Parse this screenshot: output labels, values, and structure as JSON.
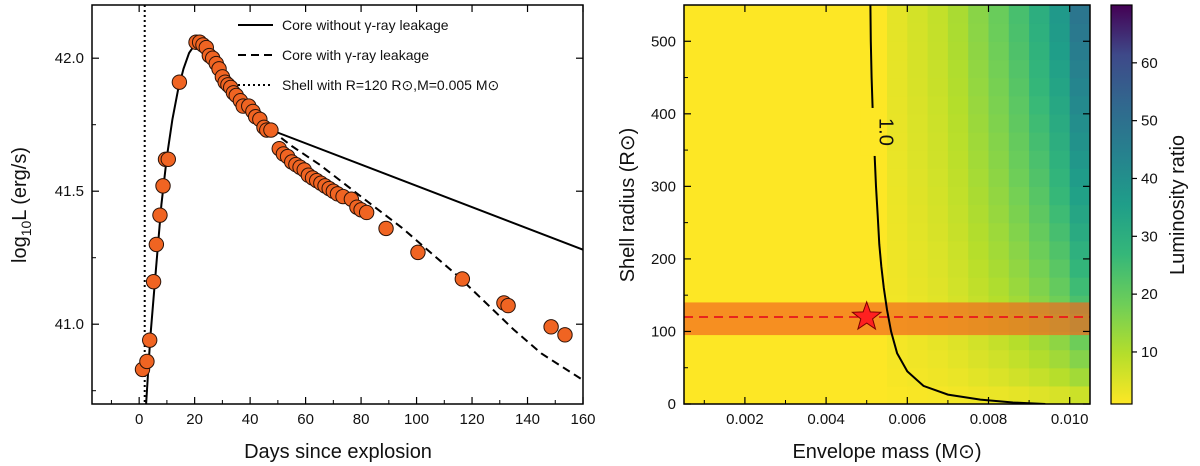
{
  "chart_data": [
    {
      "type": "scatter+line",
      "title": "",
      "xlabel": "Days since explosion",
      "ylabel_main": "log",
      "ylabel_sub": "10",
      "ylabel_rest": "L (erg/s)",
      "xlim": [
        -17,
        160
      ],
      "ylim": [
        40.7,
        42.2
      ],
      "xticks": [
        0,
        20,
        40,
        60,
        80,
        100,
        120,
        140,
        160
      ],
      "yticks": [
        41.0,
        41.5,
        42.0
      ],
      "ytick_labels": [
        "41.0",
        "41.5",
        "42.0"
      ],
      "marker_color": "#f06422",
      "legend": [
        {
          "label": "Core without γ-ray leakage",
          "style": "solid"
        },
        {
          "label": "Core with γ-ray leakage",
          "style": "dashed"
        },
        {
          "label": "Shell with R=120 R⊙,M=0.005 M⊙",
          "style": "dotted"
        }
      ],
      "observations": {
        "x": [
          1.2,
          2.8,
          3.8,
          5.2,
          6.2,
          7.5,
          8.6,
          9.5,
          10.5,
          14.5,
          20.5,
          21.8,
          23.0,
          24.2,
          25.3,
          26.5,
          27.8,
          28.8,
          30.0,
          31.0,
          32.0,
          33.0,
          34.0,
          35.0,
          36.5,
          37.5,
          39.5,
          41.0,
          42.0,
          43.5,
          45.0,
          46.0,
          47.5,
          50.5,
          52.0,
          53.5,
          55.0,
          56.5,
          58.0,
          59.5,
          61.0,
          62.5,
          64.0,
          65.5,
          67.0,
          68.5,
          70.0,
          71.5,
          73.5,
          76.5,
          78.5,
          80.0,
          82.0,
          89.0,
          100.5,
          116.5,
          131.5,
          133.0,
          148.5,
          153.5
        ],
        "y": [
          40.83,
          40.86,
          40.94,
          41.16,
          41.3,
          41.41,
          41.52,
          41.62,
          41.62,
          41.91,
          42.06,
          42.06,
          42.05,
          42.04,
          42.01,
          42.0,
          41.98,
          41.96,
          41.93,
          41.91,
          41.9,
          41.89,
          41.87,
          41.86,
          41.84,
          41.82,
          41.82,
          41.8,
          41.78,
          41.77,
          41.74,
          41.73,
          41.73,
          41.66,
          41.64,
          41.63,
          41.61,
          41.6,
          41.59,
          41.58,
          41.56,
          41.55,
          41.54,
          41.53,
          41.52,
          41.51,
          41.5,
          41.49,
          41.48,
          41.47,
          41.44,
          41.43,
          41.42,
          41.36,
          41.27,
          41.17,
          41.08,
          41.07,
          40.99,
          40.96
        ]
      },
      "model_rise": {
        "x": [
          2.5,
          4,
          6,
          8,
          10,
          12,
          14,
          16,
          18,
          20,
          22,
          24,
          26,
          28,
          30,
          32,
          35,
          38,
          41,
          44,
          47.5
        ],
        "y": [
          40.7,
          40.95,
          41.2,
          41.45,
          41.63,
          41.77,
          41.88,
          41.96,
          42.02,
          42.05,
          42.06,
          42.04,
          42.0,
          41.95,
          41.91,
          41.88,
          41.84,
          41.81,
          41.78,
          41.75,
          41.73
        ]
      },
      "model_no_leakage": {
        "x": [
          47.5,
          160
        ],
        "y": [
          41.73,
          41.28
        ]
      },
      "model_leakage": {
        "x": [
          47.5,
          55,
          65,
          75,
          85,
          95,
          105,
          115,
          125,
          135,
          145,
          160
        ],
        "y": [
          41.73,
          41.67,
          41.6,
          41.52,
          41.44,
          41.36,
          41.27,
          41.18,
          41.08,
          40.98,
          40.89,
          40.79
        ]
      },
      "shell_line_x": 2.0
    },
    {
      "type": "heatmap",
      "title": "",
      "xlabel": "Envelope mass (M⊙)",
      "ylabel": "Shell radius (R⊙)",
      "colorbar_label": "Luminosity ratio",
      "xlim": [
        0.0005,
        0.0105
      ],
      "ylim": [
        0,
        550
      ],
      "xticks": [
        0.002,
        0.004,
        0.006,
        0.008,
        0.01
      ],
      "xtick_labels": [
        "0.002",
        "0.004",
        "0.006",
        "0.008",
        "0.010"
      ],
      "yticks": [
        0,
        100,
        200,
        300,
        400,
        500
      ],
      "colorbar_ticks": [
        10,
        20,
        30,
        40,
        50,
        60
      ],
      "colorbar_range": [
        1,
        70
      ],
      "column_mass_starts": [
        0.0055,
        0.006,
        0.0065,
        0.007,
        0.0075,
        0.008,
        0.0085,
        0.009,
        0.0095,
        0.01
      ],
      "column_top_ratio": [
        4,
        6,
        8,
        11,
        15,
        19,
        24,
        30,
        37,
        48
      ],
      "contour_label": "1.0",
      "contour": {
        "x": [
          0.00509,
          0.0051,
          0.00512,
          0.00515,
          0.00519,
          0.00523,
          0.00527,
          0.00531,
          0.00536,
          0.00542,
          0.0055,
          0.0056,
          0.00575,
          0.006,
          0.0064,
          0.007,
          0.0078,
          0.0086,
          0.0094
        ],
        "y": [
          550,
          500,
          450,
          400,
          350,
          300,
          260,
          220,
          190,
          160,
          130,
          100,
          70,
          45,
          25,
          13,
          6,
          2,
          0
        ]
      },
      "shell_band": [
        95,
        140
      ],
      "shell_radius": 120,
      "star_mass": 0.005,
      "star_radius": 120,
      "star_color": "#ff2020"
    }
  ]
}
